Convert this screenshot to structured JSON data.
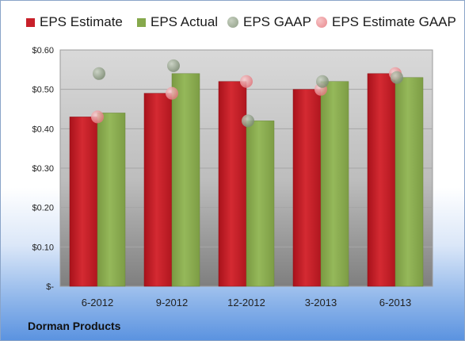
{
  "company": "Dorman Products",
  "legend": {
    "eps_estimate": "EPS Estimate",
    "eps_actual": "EPS Actual",
    "eps_gaap": "EPS GAAP",
    "eps_estimate_gaap": "EPS Estimate GAAP"
  },
  "colors": {
    "estimate": "#c8202a",
    "actual": "#86a94c",
    "gaap": "#8f9e86",
    "estimate_gaap": "#e8878c"
  },
  "chart_data": {
    "type": "bar",
    "categories": [
      "6-2012",
      "9-2012",
      "12-2012",
      "3-2013",
      "6-2013"
    ],
    "series": [
      {
        "name": "EPS Estimate",
        "type": "bar",
        "values": [
          0.43,
          0.49,
          0.52,
          0.5,
          0.54
        ]
      },
      {
        "name": "EPS Actual",
        "type": "bar",
        "values": [
          0.44,
          0.54,
          0.42,
          0.52,
          0.53
        ]
      },
      {
        "name": "EPS GAAP",
        "type": "scatter",
        "values": [
          0.54,
          0.56,
          0.42,
          0.52,
          0.53
        ]
      },
      {
        "name": "EPS Estimate GAAP",
        "type": "scatter",
        "values": [
          0.43,
          0.49,
          0.52,
          0.5,
          0.54
        ]
      }
    ],
    "ylim": [
      0,
      0.6
    ],
    "yticks": [
      {
        "value": 0,
        "label": "$-"
      },
      {
        "value": 0.1,
        "label": "$0.10"
      },
      {
        "value": 0.2,
        "label": "$0.20"
      },
      {
        "value": 0.3,
        "label": "$0.30"
      },
      {
        "value": 0.4,
        "label": "$0.40"
      },
      {
        "value": 0.5,
        "label": "$0.50"
      },
      {
        "value": 0.6,
        "label": "$0.60"
      }
    ],
    "grid": true,
    "legend_position": "top"
  }
}
